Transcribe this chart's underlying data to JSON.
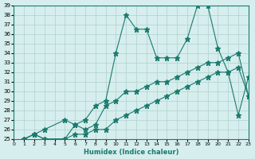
{
  "xlabel": "Humidex (Indice chaleur)",
  "ylabel": "",
  "bg_color": "#d6eeed",
  "line_color": "#1a7a6e",
  "grid_color": "#b0d0ce",
  "xlim": [
    0,
    23
  ],
  "ylim": [
    25,
    39
  ],
  "xticks": [
    0,
    1,
    2,
    3,
    4,
    5,
    6,
    7,
    8,
    9,
    10,
    11,
    12,
    13,
    14,
    15,
    16,
    17,
    18,
    19,
    20,
    21,
    22,
    23
  ],
  "yticks": [
    25,
    26,
    27,
    28,
    29,
    30,
    31,
    32,
    33,
    34,
    35,
    36,
    37,
    38,
    39
  ],
  "series": [
    {
      "x": [
        1,
        2,
        3,
        5,
        6,
        7,
        8,
        9,
        10,
        11,
        12,
        13,
        14,
        15,
        16,
        17,
        18,
        19,
        20,
        21,
        22,
        23
      ],
      "y": [
        25,
        25.5,
        26,
        27,
        26.5,
        27,
        28.5,
        29,
        34,
        38,
        36.5,
        36.5,
        33.5,
        33.5,
        33.5,
        35.5,
        39,
        39,
        34.5,
        32,
        27.5,
        31.5
      ],
      "marker": "*",
      "markersize": 5
    },
    {
      "x": [
        1,
        2,
        3,
        5,
        6,
        7,
        8,
        9,
        10,
        11,
        12,
        13,
        14,
        15,
        16,
        17,
        18,
        19,
        20,
        21,
        22,
        23
      ],
      "y": [
        25,
        25.5,
        25,
        25,
        26.5,
        26,
        26.5,
        28.5,
        29,
        30,
        30,
        30.5,
        31,
        31,
        31.5,
        32,
        32.5,
        33,
        33,
        33.5,
        34,
        29.5
      ],
      "marker": "*",
      "markersize": 5
    },
    {
      "x": [
        1,
        2,
        3,
        5,
        6,
        7,
        8,
        9,
        10,
        11,
        12,
        13,
        14,
        15,
        16,
        17,
        18,
        19,
        20,
        21,
        22,
        23
      ],
      "y": [
        25,
        25.5,
        25,
        25,
        25.5,
        25.5,
        26,
        26,
        27,
        27.5,
        28,
        28.5,
        29,
        29.5,
        30,
        30.5,
        31,
        31.5,
        32,
        32,
        32.5,
        29.5
      ],
      "marker": "*",
      "markersize": 5
    }
  ]
}
